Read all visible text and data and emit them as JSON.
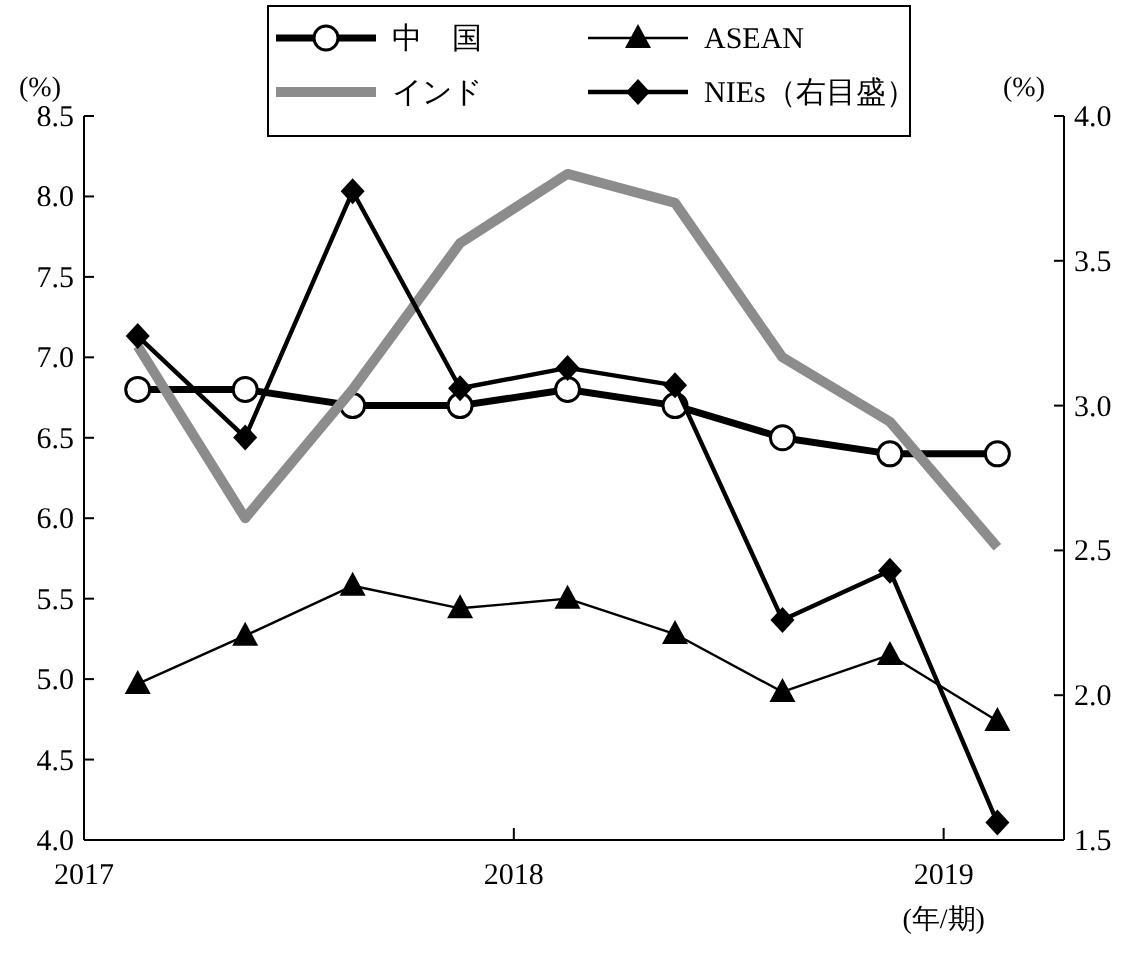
{
  "chart_data": {
    "type": "line",
    "ylabel": "(%)",
    "y2label": "(%)",
    "xlabel": "(年/期)",
    "x": [
      2017.125,
      2017.375,
      2017.625,
      2017.875,
      2018.125,
      2018.375,
      2018.625,
      2018.875,
      2019.125
    ],
    "xlim": [
      2017,
      2019.28
    ],
    "xticks": [
      2017,
      2018,
      2019
    ],
    "ylim": [
      4.0,
      8.5
    ],
    "yticks": [
      {
        "value": 4.0,
        "label": "4.0"
      },
      {
        "value": 4.5,
        "label": "4.5"
      },
      {
        "value": 5.0,
        "label": "5.0"
      },
      {
        "value": 5.5,
        "label": "5.5"
      },
      {
        "value": 6.0,
        "label": "6.0"
      },
      {
        "value": 6.5,
        "label": "6.5"
      },
      {
        "value": 7.0,
        "label": "7.0"
      },
      {
        "value": 7.5,
        "label": "7.5"
      },
      {
        "value": 8.0,
        "label": "8.0"
      },
      {
        "value": 8.5,
        "label": "8.5"
      }
    ],
    "y2lim": [
      1.5,
      4.0
    ],
    "y2ticks": [
      {
        "value": 1.5,
        "label": "1.5"
      },
      {
        "value": 2.0,
        "label": "2.0"
      },
      {
        "value": 2.5,
        "label": "2.5"
      },
      {
        "value": 3.0,
        "label": "3.0"
      },
      {
        "value": 3.5,
        "label": "3.5"
      },
      {
        "value": 4.0,
        "label": "4.0"
      }
    ],
    "grid": false,
    "legend": "top",
    "series": [
      {
        "name": "中　国",
        "color": "#000000",
        "marker": "circle",
        "values": [
          6.8,
          6.8,
          6.7,
          6.7,
          6.8,
          6.7,
          6.5,
          6.4,
          6.4
        ]
      },
      {
        "name": "ASEAN",
        "color": "#000000",
        "marker": "triangle",
        "values": [
          4.97,
          5.27,
          5.58,
          5.44,
          5.5,
          5.28,
          4.92,
          5.15,
          4.74
        ]
      },
      {
        "name": "インド",
        "color": "#8c8c8c",
        "marker": "none",
        "values": [
          7.07,
          6.0,
          6.8,
          7.71,
          8.14,
          7.96,
          7.0,
          6.6,
          5.82
        ]
      },
      {
        "name": "NIEs（右目盛）",
        "color": "#000000",
        "marker": "diamond",
        "axis": "y2",
        "values": [
          3.24,
          2.89,
          3.74,
          3.06,
          3.13,
          3.07,
          2.26,
          2.43,
          1.56
        ]
      }
    ]
  }
}
